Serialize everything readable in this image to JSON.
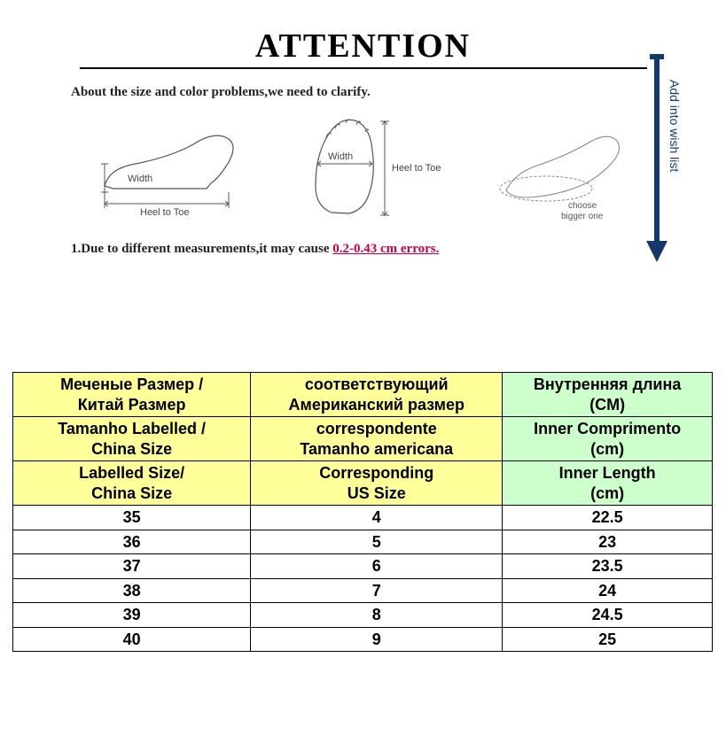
{
  "top": {
    "title": "ATTENTION",
    "subtitle": "About the size and color problems,we need to clarify.",
    "footnote_pre": "1.Due to different measurements,it may cause ",
    "footnote_err": "0.2-0.43 cm errors.",
    "wish_text": "Add into wish list",
    "diagram_labels": {
      "side_width": "Width",
      "side_heel_to_toe": "Heel to Toe",
      "top_width": "Width",
      "top_heel_to_toe": "Heel to Toe",
      "choose_line1": "choose",
      "choose_line2": "bigger one"
    },
    "colors": {
      "arrow": "#14376e",
      "error_text": "#cc0044",
      "stroke": "#555555"
    }
  },
  "table": {
    "colors": {
      "header_yellow": "#ffff99",
      "header_green": "#ccffcc",
      "border": "#000000",
      "cell_bg": "#ffffff"
    },
    "header_rows": [
      {
        "cells": [
          {
            "text_top": "Меченые Размер /",
            "text_bot": "Китай Размер",
            "cls": "hdr-yellow"
          },
          {
            "text_top": "соответствующий",
            "text_bot": "Американский размер",
            "cls": "hdr-yellow"
          },
          {
            "text_top": "Внутренняя длина",
            "text_bot": "(CM)",
            "cls": "hdr-green"
          }
        ]
      },
      {
        "cells": [
          {
            "text_top": "Tamanho Labelled /",
            "text_bot": "China Size",
            "cls": "hdr-yellow"
          },
          {
            "text_top": "correspondente",
            "text_bot": "Tamanho americana",
            "cls": "hdr-yellow"
          },
          {
            "text_top": "Inner Comprimento",
            "text_bot": "(cm)",
            "cls": "hdr-green"
          }
        ]
      },
      {
        "cells": [
          {
            "text_top": "Labelled Size/",
            "text_bot": "China Size",
            "cls": "hdr-yellow"
          },
          {
            "text_top": "Corresponding",
            "text_bot": "US Size",
            "cls": "hdr-yellow"
          },
          {
            "text_top": "Inner Length",
            "text_bot": "(cm)",
            "cls": "hdr-green"
          }
        ]
      }
    ],
    "data_rows": [
      {
        "china": "35",
        "us": "4",
        "cm": "22.5"
      },
      {
        "china": "36",
        "us": "5",
        "cm": "23"
      },
      {
        "china": "37",
        "us": "6",
        "cm": "23.5"
      },
      {
        "china": "38",
        "us": "7",
        "cm": "24"
      },
      {
        "china": "39",
        "us": "8",
        "cm": "24.5"
      },
      {
        "china": "40",
        "us": "9",
        "cm": "25"
      }
    ]
  }
}
